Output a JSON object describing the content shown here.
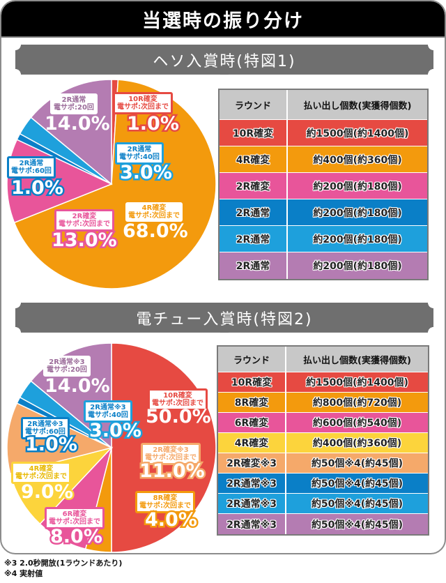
{
  "header": {
    "title": "当選時の振り分け"
  },
  "section1": {
    "banner": "ヘソ入賞時(特図1)",
    "table": {
      "headers": [
        "ラウンド",
        "払い出し個数(実獲得個数)"
      ],
      "rows": [
        {
          "round": "10R確変",
          "payout": "約1500個(約1400個)",
          "color": "#e64a42"
        },
        {
          "round": "4R確変",
          "payout": "約400個(約360個)",
          "color": "#f39a0d"
        },
        {
          "round": "2R確変",
          "payout": "約200個(約180個)",
          "color": "#e8559a"
        },
        {
          "round": "2R通常",
          "payout": "約200個(約180個)",
          "color": "#0a7fc7"
        },
        {
          "round": "2R通常",
          "payout": "約200個(約180個)",
          "color": "#1ea0dc"
        },
        {
          "round": "2R通常",
          "payout": "約200個(約180個)",
          "color": "#b47cb2"
        }
      ]
    },
    "labels": [
      {
        "l1": "10R確変",
        "l2": "電サポ:次回まで",
        "pct": "1.0%"
      },
      {
        "l1": "4R確変",
        "l2": "電サポ:次回まで",
        "pct": "68.0%"
      },
      {
        "l1": "2R確変",
        "l2": "電サポ:次回まで",
        "pct": "13.0%"
      },
      {
        "l1": "2R通常",
        "l2": "電サポ:60回",
        "pct": "1.0%"
      },
      {
        "l1": "2R通常",
        "l2": "電サポ:40回",
        "pct": "3.0%"
      },
      {
        "l1": "2R通常",
        "l2": "電サポ:20回",
        "pct": "14.0%"
      }
    ]
  },
  "section2": {
    "banner": "電チュー入賞時(特図2)",
    "table": {
      "headers": [
        "ラウンド",
        "払い出し個数(実獲得個数)"
      ],
      "rows": [
        {
          "round": "10R確変",
          "payout": "約1500個(約1400個)",
          "color": "#e64a42"
        },
        {
          "round": "8R確変",
          "payout": "約800個(約720個)",
          "color": "#f39a0d"
        },
        {
          "round": "6R確変",
          "payout": "約600個(約540個)",
          "color": "#e8559a"
        },
        {
          "round": "4R確変",
          "payout": "約400個(約360個)",
          "color": "#fcd43c"
        },
        {
          "round": "2R確変※3",
          "payout": "約50個※4(約45個)",
          "color": "#f5a96a"
        },
        {
          "round": "2R通常※3",
          "payout": "約50個※4(約45個)",
          "color": "#0a7fc7"
        },
        {
          "round": "2R通常※3",
          "payout": "約50個※4(約45個)",
          "color": "#1ea0dc"
        },
        {
          "round": "2R通常※3",
          "payout": "約50個※4(約45個)",
          "color": "#b47cb2"
        }
      ]
    },
    "labels": [
      {
        "l1": "10R確変",
        "l2": "電サポ:次回まで",
        "pct": "50.0%"
      },
      {
        "l1": "8R確変",
        "l2": "電サポ:次回まで",
        "pct": "4.0%"
      },
      {
        "l1": "6R確変",
        "l2": "電サポ:次回まで",
        "pct": "8.0%"
      },
      {
        "l1": "4R確変",
        "l2": "電サポ:次回まで",
        "pct": "9.0%"
      },
      {
        "l1": "2R確変※3",
        "l2": "電サポ:次回まで",
        "pct": "11.0%"
      },
      {
        "l1": "2R通常※3",
        "l2": "電サポ:60回",
        "pct": "1.0%"
      },
      {
        "l1": "2R通常※3",
        "l2": "電サポ:40回",
        "pct": "3.0%"
      },
      {
        "l1": "2R通常※3",
        "l2": "電サポ:20回",
        "pct": "14.0%"
      }
    ]
  },
  "notes": {
    "n3": "※3 2.0秒開放(1ラウンドあたり)",
    "n4": "※4 実射値"
  },
  "chart_data": [
    {
      "type": "pie",
      "title": "ヘソ入賞時(特図1)",
      "categories": [
        "10R確変 電サポ:次回まで",
        "4R確変 電サポ:次回まで",
        "2R確変 電サポ:次回まで",
        "2R通常 電サポ:60回",
        "2R通常 電サポ:40回",
        "2R通常 電サポ:20回"
      ],
      "values": [
        1.0,
        68.0,
        13.0,
        1.0,
        3.0,
        14.0
      ],
      "colors": [
        "#e64a42",
        "#f39a0d",
        "#e8559a",
        "#0a7fc7",
        "#1ea0dc",
        "#b47cb2"
      ],
      "unit": "%"
    },
    {
      "type": "pie",
      "title": "電チュー入賞時(特図2)",
      "categories": [
        "10R確変 電サポ:次回まで",
        "8R確変 電サポ:次回まで",
        "6R確変 電サポ:次回まで",
        "4R確変 電サポ:次回まで",
        "2R確変※3 電サポ:次回まで",
        "2R通常※3 電サポ:60回",
        "2R通常※3 電サポ:40回",
        "2R通常※3 電サポ:20回"
      ],
      "values": [
        50.0,
        4.0,
        8.0,
        9.0,
        11.0,
        1.0,
        3.0,
        14.0
      ],
      "colors": [
        "#e64a42",
        "#f39a0d",
        "#e8559a",
        "#fcd43c",
        "#f5a96a",
        "#0a7fc7",
        "#1ea0dc",
        "#b47cb2"
      ],
      "unit": "%"
    }
  ]
}
